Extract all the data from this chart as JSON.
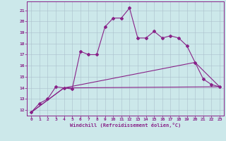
{
  "xlabel": "Windchill (Refroidissement éolien,°C)",
  "bg_color": "#cce8ea",
  "grid_color": "#aac0cc",
  "line_color": "#882288",
  "spine_color": "#882288",
  "xlim": [
    -0.5,
    23.5
  ],
  "ylim": [
    11.5,
    21.8
  ],
  "xticks": [
    0,
    1,
    2,
    3,
    4,
    5,
    6,
    7,
    8,
    9,
    10,
    11,
    12,
    13,
    14,
    15,
    16,
    17,
    18,
    19,
    20,
    21,
    22,
    23
  ],
  "yticks": [
    12,
    13,
    14,
    15,
    16,
    17,
    18,
    19,
    20,
    21
  ],
  "curve1_x": [
    0,
    1,
    2,
    3,
    4,
    5,
    6,
    7,
    8,
    9,
    10,
    11,
    12,
    13,
    14,
    15,
    16,
    17,
    18,
    19,
    20,
    21,
    22,
    23
  ],
  "curve1_y": [
    11.8,
    12.6,
    13.0,
    14.1,
    14.0,
    13.9,
    17.3,
    17.0,
    17.0,
    19.5,
    20.3,
    20.3,
    21.2,
    18.5,
    18.5,
    19.1,
    18.5,
    18.7,
    18.5,
    17.8,
    16.3,
    14.8,
    14.3,
    14.1
  ],
  "curve2_x": [
    0,
    4,
    23
  ],
  "curve2_y": [
    11.8,
    14.0,
    14.1
  ],
  "curve3_x": [
    0,
    4,
    20,
    23
  ],
  "curve3_y": [
    11.8,
    14.0,
    16.3,
    14.1
  ]
}
